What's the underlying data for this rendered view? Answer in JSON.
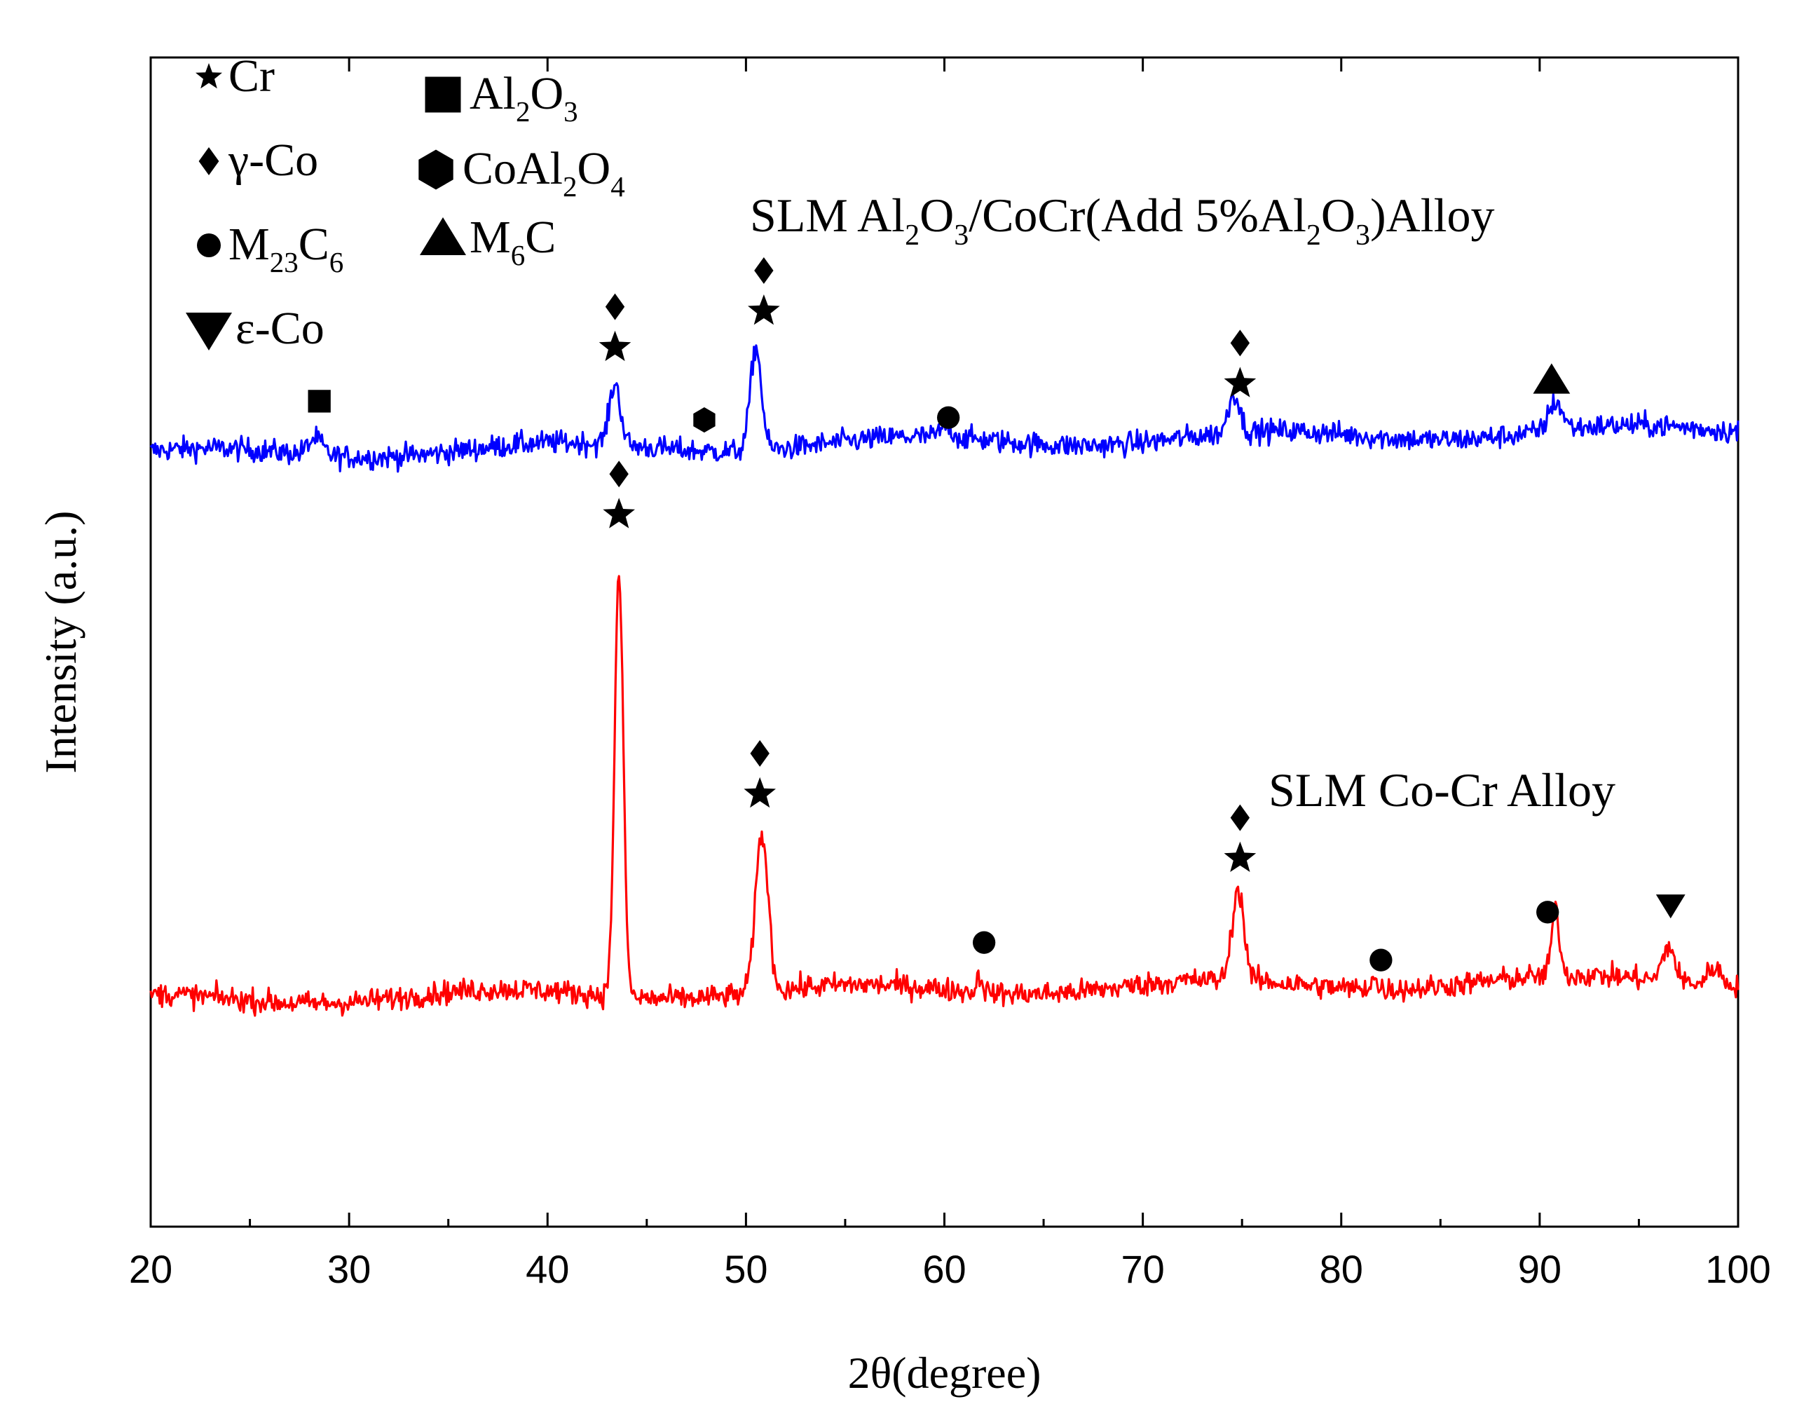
{
  "chart_data": {
    "type": "line",
    "title": "",
    "xlabel": "2θ(degree)",
    "ylabel": "Intensity (a.u.)",
    "xlim": [
      20,
      100
    ],
    "ylim": [
      0,
      100
    ],
    "x_ticks": [
      "20",
      "30",
      "40",
      "50",
      "60",
      "70",
      "80",
      "90",
      "100"
    ],
    "grid": false,
    "colors": {
      "blue": "#0000ff",
      "red": "#ff0000",
      "axis": "#000000"
    },
    "series": [
      {
        "name": "SLM Al2O3/CoCr(Add 5%Al2O3)Alloy",
        "color": "#0000ff",
        "baseline": 66.0,
        "baseline_end": 68.2,
        "noise": 0.9,
        "peaks": [
          {
            "x": 28.3,
            "h": 1.4,
            "w": 0.35
          },
          {
            "x": 43.4,
            "h": 5.2,
            "w": 0.28
          },
          {
            "x": 50.5,
            "h": 8.8,
            "w": 0.28
          },
          {
            "x": 60.1,
            "h": 0.9,
            "w": 0.3
          },
          {
            "x": 74.6,
            "h": 3.4,
            "w": 0.28
          },
          {
            "x": 90.8,
            "h": 2.4,
            "w": 0.35
          }
        ]
      },
      {
        "name": "SLM Co-Cr Alloy",
        "color": "#ff0000",
        "baseline": 19.4,
        "baseline_end": 21.2,
        "noise": 0.9,
        "peaks": [
          {
            "x": 43.6,
            "h": 36.0,
            "w": 0.22
          },
          {
            "x": 50.8,
            "h": 13.5,
            "w": 0.32
          },
          {
            "x": 61.8,
            "h": 1.4,
            "w": 0.15
          },
          {
            "x": 74.8,
            "h": 7.8,
            "w": 0.3
          },
          {
            "x": 81.6,
            "h": 1.0,
            "w": 0.15
          },
          {
            "x": 90.8,
            "h": 5.5,
            "w": 0.2
          },
          {
            "x": 96.5,
            "h": 3.0,
            "w": 0.3
          },
          {
            "x": 98.8,
            "h": 1.5,
            "w": 0.3
          }
        ]
      }
    ],
    "series_labels": [
      {
        "series": 0,
        "parts": [
          [
            "SLM Al",
            "n"
          ],
          [
            "2",
            "sub"
          ],
          [
            "O",
            "n"
          ],
          [
            "3",
            "sub"
          ],
          [
            "/CoCr(Add 5%Al",
            "n"
          ],
          [
            "2",
            "sub"
          ],
          [
            "O",
            "n"
          ],
          [
            "3",
            "sub"
          ],
          [
            ")Alloy",
            "n"
          ]
        ]
      },
      {
        "series": 1,
        "parts": [
          [
            "SLM Co-Cr Alloy",
            "n"
          ]
        ]
      }
    ],
    "legend": {
      "placement": "top-left",
      "entries": [
        {
          "symbol": "star",
          "parts": [
            [
              "Cr",
              "n"
            ]
          ]
        },
        {
          "symbol": "diamond",
          "parts": [
            [
              "γ-Co",
              "n"
            ]
          ]
        },
        {
          "symbol": "circle",
          "parts": [
            [
              "M",
              "n"
            ],
            [
              "23",
              "sub"
            ],
            [
              "C",
              "n"
            ],
            [
              "6",
              "sub"
            ]
          ]
        },
        {
          "symbol": "triangle-down",
          "parts": [
            [
              "ε-Co",
              "n"
            ]
          ]
        },
        {
          "symbol": "square",
          "parts": [
            [
              "Al",
              "n"
            ],
            [
              "2",
              "sub"
            ],
            [
              "O",
              "n"
            ],
            [
              "3",
              "sub"
            ]
          ]
        },
        {
          "symbol": "hexagon",
          "parts": [
            [
              "CoAl",
              "n"
            ],
            [
              "2",
              "sub"
            ],
            [
              "O",
              "n"
            ],
            [
              "4",
              "sub"
            ]
          ]
        },
        {
          "symbol": "triangle-up",
          "parts": [
            [
              "M",
              "n"
            ],
            [
              "6",
              "sub"
            ],
            [
              "C",
              "n"
            ]
          ]
        }
      ]
    },
    "annotations": [
      {
        "series": 0,
        "x": 28.5,
        "y": 70.6,
        "symbols": [
          "square"
        ]
      },
      {
        "series": 0,
        "x": 43.4,
        "y": 75.2,
        "symbols": [
          "star",
          "diamond"
        ]
      },
      {
        "series": 0,
        "x": 47.9,
        "y": 69.0,
        "symbols": [
          "hexagon"
        ]
      },
      {
        "series": 0,
        "x": 50.9,
        "y": 78.3,
        "symbols": [
          "star",
          "diamond"
        ]
      },
      {
        "series": 0,
        "x": 60.2,
        "y": 69.2,
        "symbols": [
          "circle"
        ]
      },
      {
        "series": 0,
        "x": 74.9,
        "y": 72.1,
        "symbols": [
          "star",
          "diamond"
        ]
      },
      {
        "series": 0,
        "x": 90.6,
        "y": 72.4,
        "symbols": [
          "triangle-up"
        ]
      },
      {
        "series": 1,
        "x": 43.6,
        "y": 60.9,
        "symbols": [
          "star",
          "diamond"
        ]
      },
      {
        "series": 1,
        "x": 50.7,
        "y": 37.0,
        "symbols": [
          "star",
          "diamond"
        ]
      },
      {
        "series": 1,
        "x": 62.0,
        "y": 24.3,
        "symbols": [
          "circle"
        ]
      },
      {
        "series": 1,
        "x": 74.9,
        "y": 31.5,
        "symbols": [
          "star",
          "diamond"
        ]
      },
      {
        "series": 1,
        "x": 82.0,
        "y": 22.8,
        "symbols": [
          "circle"
        ]
      },
      {
        "series": 1,
        "x": 90.4,
        "y": 26.9,
        "symbols": [
          "circle"
        ]
      },
      {
        "series": 1,
        "x": 96.6,
        "y": 27.5,
        "symbols": [
          "triangle-down"
        ]
      }
    ]
  }
}
